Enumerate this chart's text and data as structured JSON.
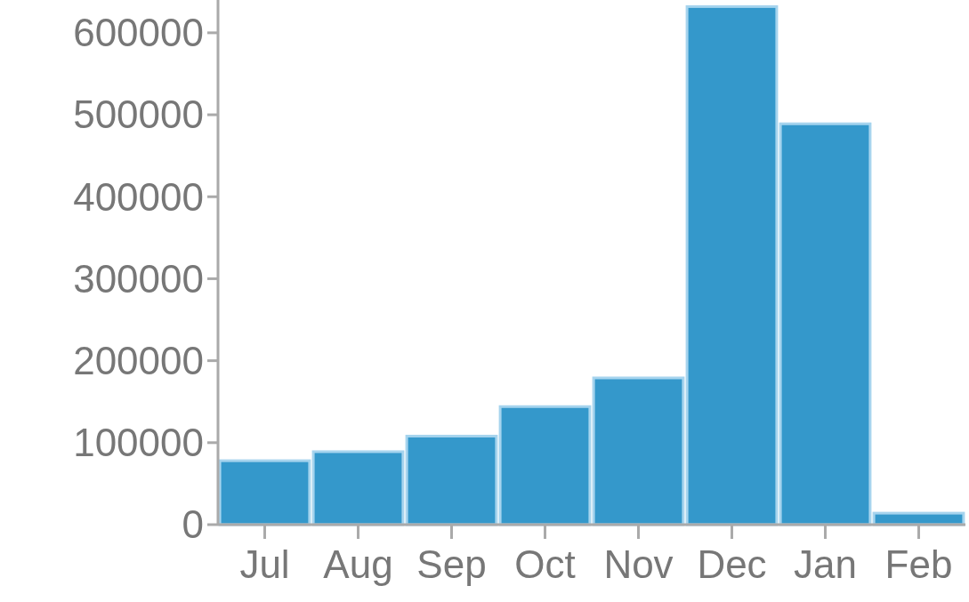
{
  "chart_data": {
    "type": "bar",
    "categories": [
      "Jul",
      "Aug",
      "Sep",
      "Oct",
      "Nov",
      "Dec",
      "Jan",
      "Feb"
    ],
    "values": [
      78000,
      89000,
      108000,
      144000,
      179000,
      632000,
      489000,
      14000
    ],
    "color": "#3498cb",
    "ylim": [
      0,
      640000
    ],
    "yticks": [
      0,
      100000,
      200000,
      300000,
      400000,
      500000,
      600000
    ],
    "grid": false
  }
}
